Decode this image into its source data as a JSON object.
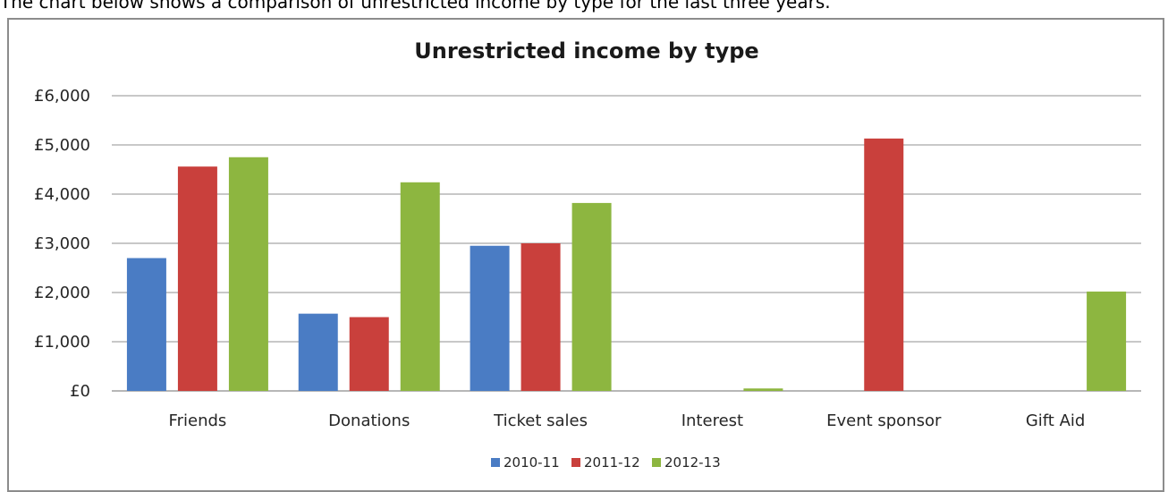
{
  "intro_text": "The chart below shows a comparison of unrestricted income by type for the last three years.",
  "chart_data": {
    "type": "bar",
    "title": "Unrestricted income by type",
    "xlabel": "",
    "ylabel": "",
    "categories": [
      "Friends",
      "Donations",
      "Ticket sales",
      "Interest",
      "Event sponsor",
      "Gift Aid"
    ],
    "series": [
      {
        "name": "2010-11",
        "color": "#4a7cc4",
        "values": [
          2700,
          1570,
          2950,
          0,
          0,
          0
        ]
      },
      {
        "name": "2011-12",
        "color": "#c9403c",
        "values": [
          4560,
          1500,
          3000,
          0,
          5130,
          0
        ]
      },
      {
        "name": "2012-13",
        "color": "#8db640",
        "values": [
          4750,
          4240,
          3820,
          50,
          0,
          2020
        ]
      }
    ],
    "ylim": [
      0,
      6000
    ],
    "yticks": [
      0,
      1000,
      2000,
      3000,
      4000,
      5000,
      6000
    ],
    "ytick_labels": [
      "£0",
      "£1,000",
      "£2,000",
      "£3,000",
      "£4,000",
      "£5,000",
      "£6,000"
    ],
    "grid": true,
    "legend_position": "bottom"
  }
}
